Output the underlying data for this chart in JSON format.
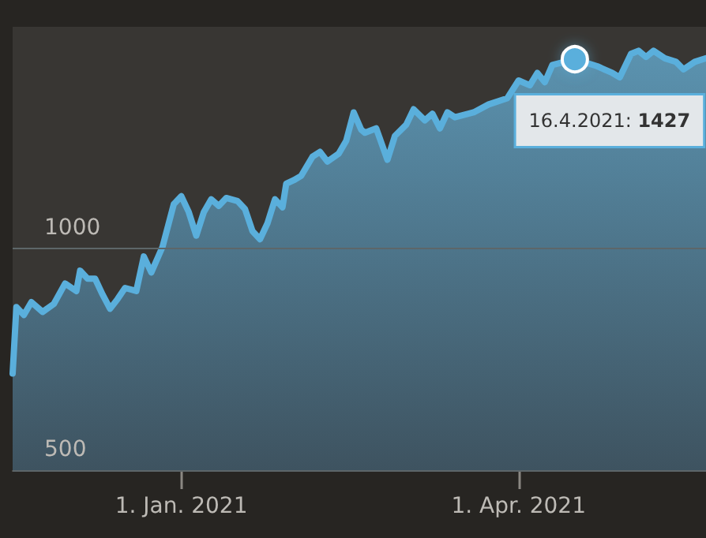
{
  "chart_data": {
    "type": "area",
    "x": [
      "2020-11-17",
      "2020-11-18",
      "2020-11-20",
      "2020-11-22",
      "2020-11-25",
      "2020-11-28",
      "2020-12-01",
      "2020-12-04",
      "2020-12-05",
      "2020-12-07",
      "2020-12-09",
      "2020-12-11",
      "2020-12-13",
      "2020-12-15",
      "2020-12-17",
      "2020-12-20",
      "2020-12-22",
      "2020-12-24",
      "2020-12-27",
      "2020-12-30",
      "2021-01-01",
      "2021-01-03",
      "2021-01-05",
      "2021-01-07",
      "2021-01-09",
      "2021-01-11",
      "2021-01-13",
      "2021-01-16",
      "2021-01-18",
      "2021-01-20",
      "2021-01-22",
      "2021-01-24",
      "2021-01-26",
      "2021-01-28",
      "2021-01-29",
      "2021-01-31",
      "2021-02-02",
      "2021-02-05",
      "2021-02-07",
      "2021-02-09",
      "2021-02-12",
      "2021-02-14",
      "2021-02-16",
      "2021-02-18",
      "2021-02-19",
      "2021-02-22",
      "2021-02-25",
      "2021-02-27",
      "2021-03-02",
      "2021-03-04",
      "2021-03-07",
      "2021-03-09",
      "2021-03-11",
      "2021-03-13",
      "2021-03-15",
      "2021-03-20",
      "2021-03-24",
      "2021-03-29",
      "2021-04-01",
      "2021-04-04",
      "2021-04-06",
      "2021-04-08",
      "2021-04-10",
      "2021-04-16",
      "2021-04-22",
      "2021-04-26",
      "2021-04-28",
      "2021-05-01",
      "2021-05-03",
      "2021-05-05",
      "2021-05-07",
      "2021-05-10",
      "2021-05-13",
      "2021-05-15",
      "2021-05-18",
      "2021-05-21"
    ],
    "series": [
      {
        "color": "#5aafdc",
        "values": [
          718,
          868,
          850,
          879,
          857,
          875,
          921,
          904,
          950,
          932,
          932,
          896,
          864,
          886,
          911,
          904,
          982,
          946,
          1004,
          1100,
          1118,
          1082,
          1029,
          1082,
          1111,
          1096,
          1114,
          1107,
          1089,
          1039,
          1021,
          1057,
          1111,
          1093,
          1146,
          1154,
          1164,
          1207,
          1218,
          1196,
          1214,
          1243,
          1307,
          1268,
          1261,
          1271,
          1200,
          1254,
          1279,
          1314,
          1289,
          1304,
          1271,
          1307,
          1296,
          1307,
          1325,
          1339,
          1379,
          1368,
          1396,
          1375,
          1414,
          1427,
          1411,
          1396,
          1386,
          1439,
          1446,
          1432,
          1446,
          1429,
          1421,
          1404,
          1421,
          1429
        ]
      }
    ],
    "xlim": [
      "2020-11-17",
      "2021-05-21"
    ],
    "xticks": [
      {
        "value": "2021-01-01",
        "label": "1. Jan. 2021"
      },
      {
        "value": "2021-04-01",
        "label": "1. Apr. 2021"
      }
    ],
    "ylim": [
      500,
      1500
    ],
    "yticks": [
      500,
      1000
    ],
    "grid": "y",
    "annotations": [
      {
        "text": "16.4.2021: 1427",
        "x": "2021-04-16",
        "y": 1427
      }
    ]
  }
}
